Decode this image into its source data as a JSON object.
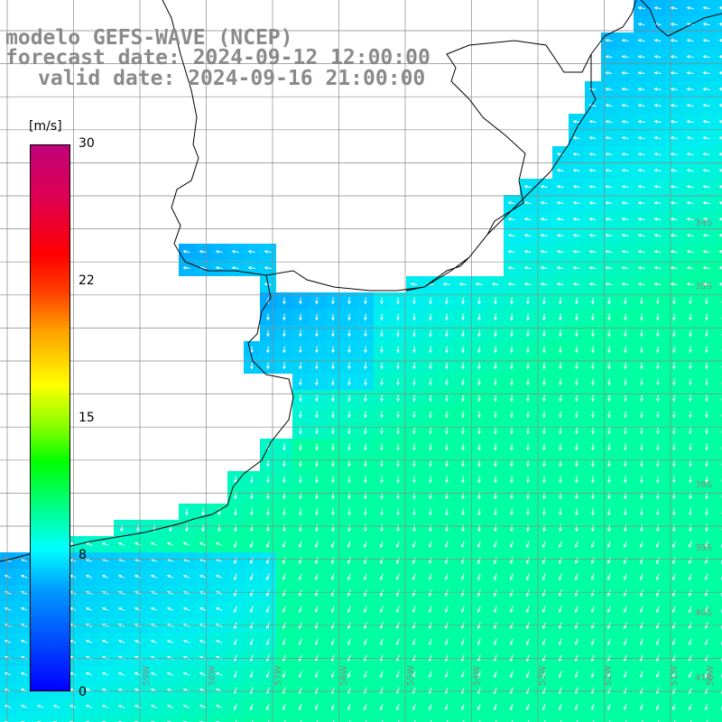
{
  "titles": {
    "line1": "modelo GEFS-WAVE (NCEP)",
    "line2": "forecast date: 2024-09-12 12:00:00",
    "line3": "valid date: 2024-09-16 21:00:00"
  },
  "colorbar": {
    "unit": "[m/s]",
    "ticks": [
      "30",
      "22",
      "15",
      "8",
      "0"
    ],
    "colors": [
      "#0000ff",
      "#0096ff",
      "#00ffff",
      "#00ff00",
      "#ffff00",
      "#ff0000",
      "#c0007a"
    ]
  },
  "grid": {
    "lat_labels": [
      "34S",
      "35S",
      "38S",
      "39S",
      "40S",
      "41S"
    ],
    "lon_labels": [
      "59W",
      "58W",
      "57W",
      "56W",
      "55W",
      "54W",
      "53W",
      "52W",
      "51W",
      "50W"
    ]
  },
  "map": {
    "land_color": "#ffffff",
    "gridline_color": "#888888",
    "coast_color": "#000000",
    "arrow_color": "#ffffff"
  }
}
